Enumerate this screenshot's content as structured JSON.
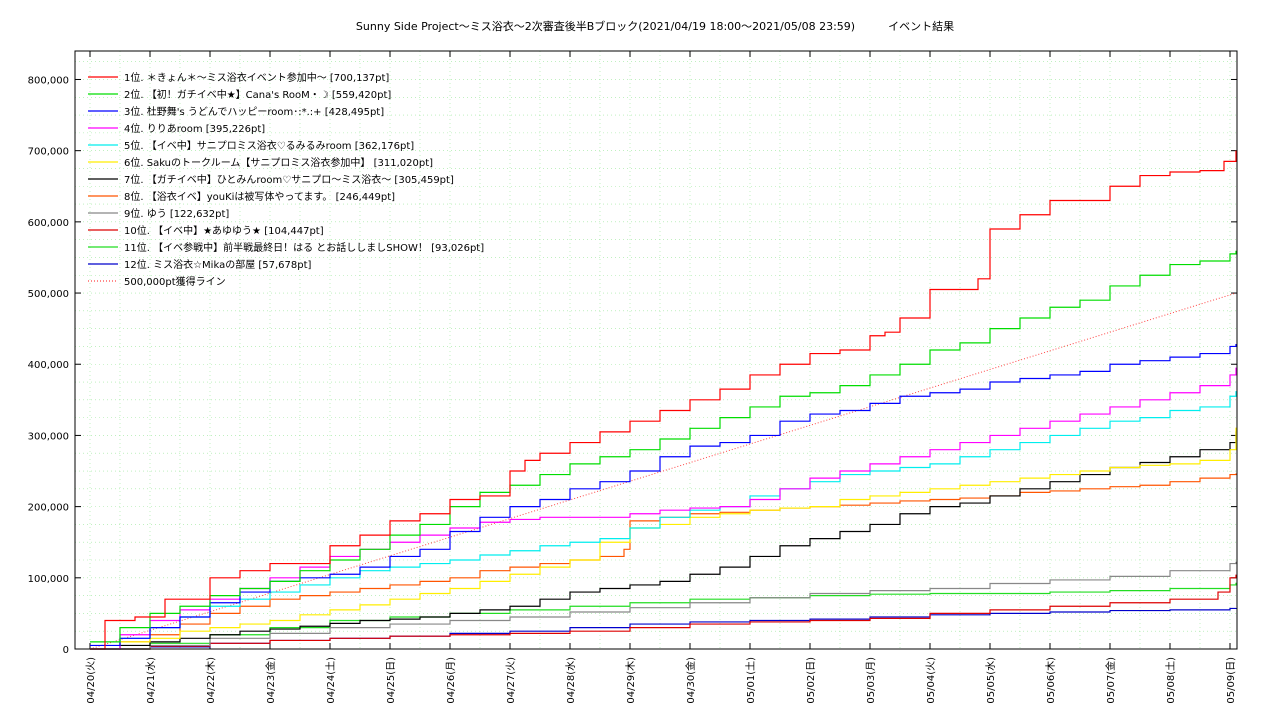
{
  "chart_data": {
    "type": "line",
    "title": "Sunny Side Project～ミス浴衣～2次審査後半Bブロック(2021/04/19 18:00～2021/05/08 23:59)　　　イベント結果",
    "xlabel": "",
    "ylabel": "",
    "grid": true,
    "legend_position": "top-left",
    "x_ticks": [
      "04/20(火)",
      "04/21(水)",
      "04/22(木)",
      "04/23(金)",
      "04/24(土)",
      "04/25(日)",
      "04/26(月)",
      "04/27(火)",
      "04/28(水)",
      "04/29(木)",
      "04/30(金)",
      "05/01(土)",
      "05/02(日)",
      "05/03(月)",
      "05/04(火)",
      "05/05(水)",
      "05/06(木)",
      "05/07(金)",
      "05/08(土)",
      "05/09(日)"
    ],
    "x_range": [
      "04/19 18:00",
      "05/09 00:10"
    ],
    "y_ticks": [
      "0",
      "100,000",
      "200,000",
      "300,000",
      "400,000",
      "500,000",
      "600,000",
      "700,000",
      "800,000"
    ],
    "ylim": [
      0,
      840000
    ],
    "series": [
      {
        "name": "1位. ＊きょん＊～ミス浴衣イベント参加中～ [700,137pt]",
        "color": "#ff0000",
        "x": [
          0,
          0.25,
          0.75,
          1.25,
          2,
          2.5,
          3,
          4,
          4.5,
          5,
          5.5,
          6,
          6.5,
          7,
          7.25,
          7.5,
          8,
          8.5,
          9,
          9.5,
          10,
          10.5,
          11,
          11.5,
          12,
          12.5,
          13,
          13.25,
          13.5,
          14,
          14.5,
          14.8,
          15,
          15.5,
          16,
          16.5,
          17,
          17.5,
          18,
          18.5,
          18.9,
          19.1
        ],
        "y": [
          0,
          40000,
          45000,
          70000,
          100000,
          110000,
          120000,
          145000,
          160000,
          180000,
          190000,
          210000,
          215000,
          250000,
          265000,
          275000,
          290000,
          305000,
          320000,
          335000,
          350000,
          365000,
          385000,
          400000,
          415000,
          420000,
          440000,
          445000,
          465000,
          505000,
          505000,
          520000,
          590000,
          610000,
          630000,
          630000,
          650000,
          665000,
          670000,
          672000,
          685000,
          700137
        ]
      },
      {
        "name": "2位. 【初！ガチイベ中★】Cana's RooM・☽ [559,420pt]",
        "color": "#00dd00",
        "x": [
          0,
          0.5,
          1,
          1.5,
          2,
          2.5,
          3,
          3.5,
          4,
          4.5,
          5,
          5.5,
          6,
          6.5,
          7,
          7.5,
          8,
          8.5,
          9,
          9.5,
          10,
          10.5,
          11,
          11.5,
          12,
          12.5,
          13,
          13.5,
          14,
          14.5,
          15,
          15.5,
          16,
          16.5,
          17,
          17.5,
          18,
          18.5,
          19,
          19.1
        ],
        "y": [
          10000,
          30000,
          50000,
          60000,
          75000,
          85000,
          95000,
          110000,
          125000,
          140000,
          160000,
          175000,
          200000,
          220000,
          230000,
          245000,
          260000,
          270000,
          280000,
          295000,
          310000,
          325000,
          340000,
          355000,
          360000,
          370000,
          385000,
          400000,
          420000,
          430000,
          450000,
          465000,
          480000,
          490000,
          510000,
          525000,
          540000,
          545000,
          555000,
          559420
        ]
      },
      {
        "name": "3位. 杜野舞's うどんでハッピーroom･:*.:+ [428,495pt]",
        "color": "#0000ff",
        "x": [
          0,
          0.5,
          1,
          1.5,
          2,
          2.5,
          3,
          3.5,
          4,
          4.5,
          5,
          5.5,
          6,
          6.5,
          7,
          7.5,
          8,
          8.5,
          9,
          9.5,
          10,
          10.5,
          11,
          11.5,
          12,
          12.5,
          13,
          13.5,
          14,
          14.5,
          15,
          15.5,
          16,
          16.5,
          17,
          17.5,
          18,
          18.5,
          19,
          19.1
        ],
        "y": [
          5000,
          15000,
          30000,
          45000,
          65000,
          80000,
          95000,
          100000,
          105000,
          115000,
          130000,
          140000,
          165000,
          185000,
          200000,
          210000,
          225000,
          235000,
          250000,
          270000,
          285000,
          290000,
          300000,
          320000,
          330000,
          335000,
          345000,
          355000,
          360000,
          365000,
          375000,
          380000,
          385000,
          390000,
          400000,
          405000,
          410000,
          415000,
          425000,
          428495
        ]
      },
      {
        "name": "4位. りりあroom [395,226pt]",
        "color": "#ff00ff",
        "x": [
          0,
          0.5,
          1,
          1.5,
          2,
          2.5,
          3,
          3.5,
          4,
          4.5,
          5,
          5.5,
          6,
          6.5,
          7,
          7.5,
          8,
          8.5,
          9,
          9.5,
          10,
          10.5,
          11,
          11.5,
          12,
          12.5,
          13,
          13.5,
          14,
          14.5,
          15,
          15.5,
          16,
          16.5,
          17,
          17.5,
          18,
          18.5,
          19,
          19.1
        ],
        "y": [
          0,
          20000,
          40000,
          55000,
          70000,
          85000,
          100000,
          115000,
          130000,
          140000,
          150000,
          160000,
          170000,
          178000,
          182000,
          185000,
          185000,
          185000,
          190000,
          195000,
          198000,
          200000,
          210000,
          225000,
          240000,
          250000,
          260000,
          270000,
          280000,
          290000,
          300000,
          310000,
          320000,
          330000,
          340000,
          350000,
          360000,
          370000,
          385000,
          395226
        ]
      },
      {
        "name": "5位. 【イベ中】サニプロミス浴衣♡るみるみroom [362,176pt]",
        "color": "#00eeee",
        "x": [
          0,
          0.5,
          1,
          1.5,
          2,
          2.5,
          3,
          3.5,
          4,
          4.5,
          5,
          5.5,
          6,
          6.5,
          7,
          7.5,
          8,
          8.5,
          9,
          9.5,
          10,
          10.5,
          11,
          11.5,
          12,
          12.5,
          13,
          13.5,
          14,
          14.5,
          15,
          15.5,
          16,
          16.5,
          17,
          17.5,
          18,
          18.5,
          19,
          19.1
        ],
        "y": [
          0,
          15000,
          30000,
          45000,
          60000,
          70000,
          80000,
          90000,
          100000,
          110000,
          115000,
          120000,
          125000,
          132000,
          138000,
          145000,
          150000,
          155000,
          170000,
          185000,
          195000,
          200000,
          215000,
          225000,
          235000,
          245000,
          250000,
          255000,
          260000,
          270000,
          280000,
          290000,
          300000,
          310000,
          320000,
          325000,
          335000,
          340000,
          355000,
          362176
        ]
      },
      {
        "name": "6位. Sakuのトークルーム【サニプロミス浴衣参加中】 [311,020pt]",
        "color": "#ffee00",
        "x": [
          0,
          0.5,
          1,
          1.5,
          2,
          2.5,
          3,
          3.5,
          4,
          4.5,
          5,
          5.5,
          6,
          6.5,
          7,
          7.5,
          8,
          8.5,
          9,
          9.5,
          10,
          10.5,
          11,
          11.5,
          12,
          12.5,
          13,
          13.5,
          14,
          14.5,
          15,
          15.5,
          16,
          16.5,
          17,
          17.5,
          18,
          18.5,
          19,
          19.1
        ],
        "y": [
          0,
          10000,
          15000,
          25000,
          30000,
          35000,
          40000,
          48000,
          55000,
          62000,
          70000,
          78000,
          85000,
          95000,
          105000,
          115000,
          125000,
          150000,
          170000,
          175000,
          185000,
          190000,
          195000,
          198000,
          200000,
          210000,
          215000,
          220000,
          225000,
          230000,
          235000,
          240000,
          245000,
          250000,
          255000,
          258000,
          260000,
          265000,
          280000,
          311020
        ]
      },
      {
        "name": "7位. 【ガチイベ中】ひとみんroom♡サニプロ～ミス浴衣～ [305,459pt]",
        "color": "#000000",
        "x": [
          0,
          0.5,
          1,
          1.5,
          2,
          2.5,
          3,
          3.5,
          4,
          4.5,
          5,
          5.5,
          6,
          6.5,
          7,
          7.5,
          8,
          8.5,
          9,
          9.5,
          10,
          10.5,
          11,
          11.5,
          12,
          12.5,
          13,
          13.5,
          14,
          14.5,
          15,
          15.5,
          16,
          16.5,
          17,
          17.5,
          18,
          18.5,
          19,
          19.1
        ],
        "y": [
          0,
          5000,
          10000,
          15000,
          20000,
          25000,
          28000,
          32000,
          36000,
          40000,
          42000,
          45000,
          50000,
          55000,
          60000,
          70000,
          80000,
          85000,
          90000,
          95000,
          105000,
          115000,
          130000,
          145000,
          155000,
          165000,
          175000,
          190000,
          200000,
          205000,
          215000,
          225000,
          235000,
          245000,
          255000,
          262000,
          270000,
          280000,
          290000,
          305459
        ]
      },
      {
        "name": "8位. 【浴衣イベ】youKiは被写体やってます。 [246,449pt]",
        "color": "#ff5500",
        "x": [
          0,
          0.5,
          1,
          1.5,
          2,
          2.5,
          3,
          3.5,
          4,
          4.5,
          5,
          5.5,
          6,
          6.5,
          7,
          7.5,
          8,
          8.5,
          8.9,
          9,
          9.5,
          10,
          10.5,
          11,
          11.5,
          12,
          12.5,
          13,
          13.5,
          14,
          14.5,
          15,
          15.5,
          16,
          16.5,
          17,
          17.5,
          18,
          18.5,
          19,
          19.1
        ],
        "y": [
          0,
          10000,
          20000,
          35000,
          50000,
          60000,
          70000,
          75000,
          80000,
          85000,
          90000,
          95000,
          100000,
          110000,
          115000,
          120000,
          125000,
          130000,
          140000,
          180000,
          185000,
          190000,
          192000,
          195000,
          198000,
          200000,
          202000,
          205000,
          208000,
          210000,
          212000,
          215000,
          220000,
          222000,
          225000,
          228000,
          230000,
          235000,
          240000,
          245000,
          246449
        ]
      },
      {
        "name": "9位. ゆう [122,632pt]",
        "color": "#888888",
        "x": [
          0,
          1,
          2,
          3,
          4,
          5,
          6,
          7,
          8,
          9,
          10,
          11,
          12,
          13,
          14,
          15,
          16,
          17,
          18,
          19,
          19.1
        ],
        "y": [
          0,
          5000,
          15000,
          22000,
          30000,
          35000,
          40000,
          45000,
          52000,
          58000,
          65000,
          72000,
          78000,
          82000,
          85000,
          92000,
          97000,
          102000,
          110000,
          120000,
          122632
        ]
      },
      {
        "name": "10位. 【イベ中】★あゆゆう★ [104,447pt]",
        "color": "#dd0000",
        "x": [
          0,
          1,
          2,
          3,
          4,
          5,
          6,
          7,
          8,
          9,
          10,
          11,
          12,
          13,
          14,
          15,
          16,
          17,
          18,
          18.8,
          19,
          19.1
        ],
        "y": [
          0,
          4000,
          8000,
          12000,
          15000,
          18000,
          20000,
          22000,
          25000,
          30000,
          35000,
          38000,
          40000,
          43000,
          50000,
          55000,
          60000,
          65000,
          70000,
          80000,
          100000,
          104447
        ]
      },
      {
        "name": "11位. 【イベ参戦中】前半戦最終日！はる とお話ししましSHOW！ [93,026pt]",
        "color": "#22dd22",
        "x": [
          0,
          1,
          2,
          3,
          4,
          5,
          6,
          7,
          8,
          9,
          10,
          11,
          12,
          13,
          14,
          15,
          16,
          17,
          18,
          19,
          19.1
        ],
        "y": [
          0,
          8000,
          20000,
          30000,
          40000,
          45000,
          50000,
          55000,
          60000,
          65000,
          70000,
          72000,
          75000,
          77000,
          78000,
          78000,
          80000,
          82000,
          85000,
          90000,
          93026
        ]
      },
      {
        "name": "12位. ミス浴衣☆Mikaの部屋 [57,678pt]",
        "color": "#0000cc",
        "x": [
          0,
          1,
          2,
          3,
          4,
          5,
          6,
          7,
          8,
          9,
          10,
          11,
          12,
          13,
          14,
          15,
          16,
          17,
          18,
          19,
          19.1
        ],
        "y": [
          0,
          3000,
          8000,
          12000,
          15000,
          18000,
          22000,
          25000,
          30000,
          35000,
          38000,
          40000,
          42000,
          45000,
          48000,
          50000,
          52000,
          54000,
          55000,
          57000,
          57678
        ]
      }
    ],
    "reference_line": {
      "name": "500,000pt獲得ライン",
      "color": "#ff4444",
      "x": [
        0,
        19.1
      ],
      "y": [
        0,
        500000
      ]
    }
  }
}
